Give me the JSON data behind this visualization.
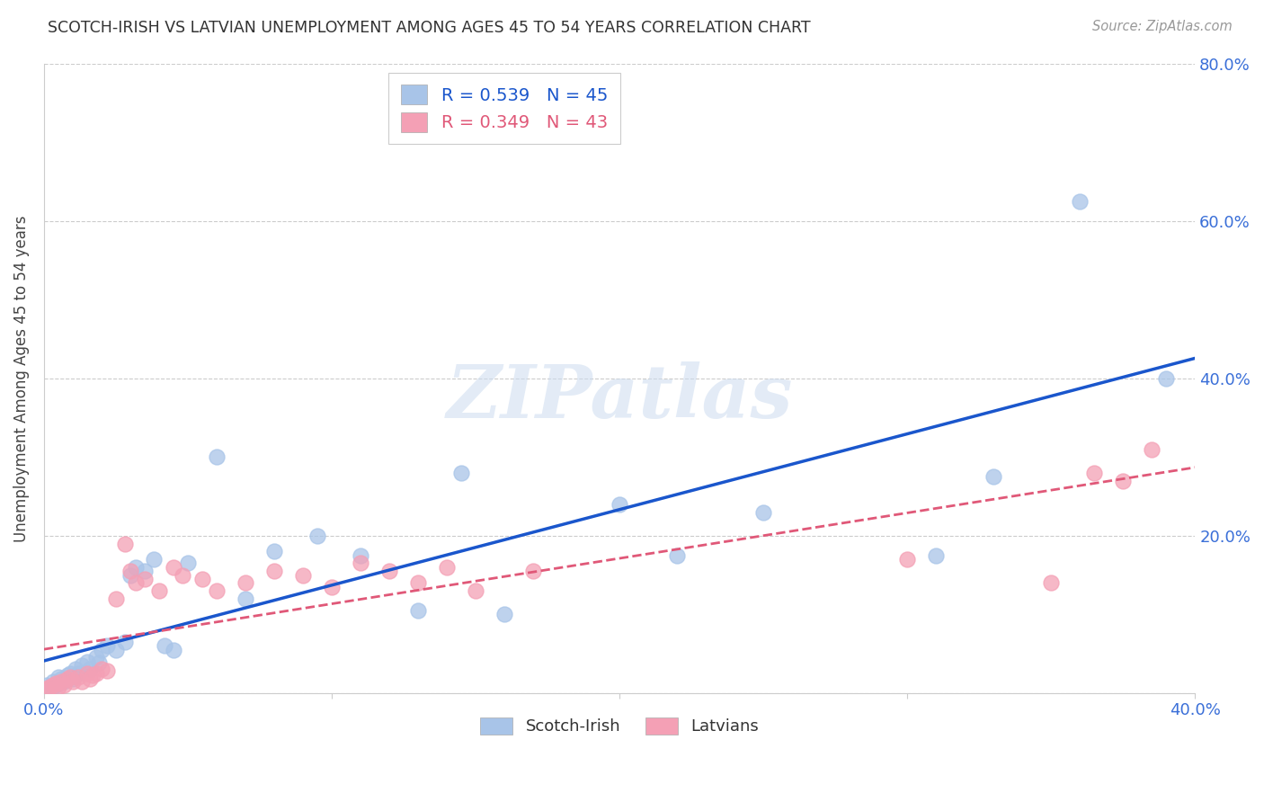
{
  "title": "SCOTCH-IRISH VS LATVIAN UNEMPLOYMENT AMONG AGES 45 TO 54 YEARS CORRELATION CHART",
  "source": "Source: ZipAtlas.com",
  "ylabel": "Unemployment Among Ages 45 to 54 years",
  "xlim": [
    0.0,
    0.4
  ],
  "ylim": [
    0.0,
    0.8
  ],
  "xticks": [
    0.0,
    0.1,
    0.2,
    0.3,
    0.4
  ],
  "yticks": [
    0.0,
    0.2,
    0.4,
    0.6,
    0.8
  ],
  "xticklabels_show": [
    "0.0%",
    "",
    "",
    "",
    "40.0%"
  ],
  "yticklabels": [
    "",
    "20.0%",
    "40.0%",
    "60.0%",
    "80.0%"
  ],
  "scotch_irish_R": 0.539,
  "scotch_irish_N": 45,
  "latvian_R": 0.349,
  "latvian_N": 43,
  "scotch_irish_color": "#a8c4e8",
  "latvian_color": "#f4a0b5",
  "scotch_irish_line_color": "#1a56cc",
  "latvian_line_color": "#e05878",
  "watermark": "ZIPatlas",
  "scotch_irish_x": [
    0.001,
    0.002,
    0.003,
    0.003,
    0.004,
    0.005,
    0.005,
    0.006,
    0.007,
    0.008,
    0.009,
    0.01,
    0.011,
    0.012,
    0.013,
    0.015,
    0.016,
    0.018,
    0.019,
    0.02,
    0.022,
    0.025,
    0.028,
    0.03,
    0.032,
    0.035,
    0.038,
    0.042,
    0.045,
    0.05,
    0.06,
    0.07,
    0.08,
    0.095,
    0.11,
    0.13,
    0.145,
    0.16,
    0.2,
    0.22,
    0.25,
    0.31,
    0.33,
    0.36,
    0.39
  ],
  "scotch_irish_y": [
    0.01,
    0.005,
    0.008,
    0.015,
    0.01,
    0.012,
    0.02,
    0.018,
    0.015,
    0.022,
    0.025,
    0.018,
    0.03,
    0.025,
    0.035,
    0.04,
    0.03,
    0.045,
    0.038,
    0.055,
    0.06,
    0.055,
    0.065,
    0.15,
    0.16,
    0.155,
    0.17,
    0.06,
    0.055,
    0.165,
    0.3,
    0.12,
    0.18,
    0.2,
    0.175,
    0.105,
    0.28,
    0.1,
    0.24,
    0.175,
    0.23,
    0.175,
    0.275,
    0.625,
    0.4
  ],
  "latvian_x": [
    0.001,
    0.002,
    0.003,
    0.004,
    0.005,
    0.006,
    0.007,
    0.008,
    0.009,
    0.01,
    0.012,
    0.013,
    0.015,
    0.016,
    0.017,
    0.018,
    0.02,
    0.022,
    0.025,
    0.028,
    0.03,
    0.032,
    0.035,
    0.04,
    0.045,
    0.048,
    0.055,
    0.06,
    0.07,
    0.08,
    0.09,
    0.1,
    0.11,
    0.12,
    0.13,
    0.14,
    0.15,
    0.17,
    0.3,
    0.35,
    0.365,
    0.375,
    0.385
  ],
  "latvian_y": [
    0.005,
    0.008,
    0.01,
    0.012,
    0.008,
    0.015,
    0.01,
    0.018,
    0.02,
    0.015,
    0.02,
    0.015,
    0.025,
    0.018,
    0.022,
    0.025,
    0.03,
    0.028,
    0.12,
    0.19,
    0.155,
    0.14,
    0.145,
    0.13,
    0.16,
    0.15,
    0.145,
    0.13,
    0.14,
    0.155,
    0.15,
    0.135,
    0.165,
    0.155,
    0.14,
    0.16,
    0.13,
    0.155,
    0.17,
    0.14,
    0.28,
    0.27,
    0.31
  ]
}
